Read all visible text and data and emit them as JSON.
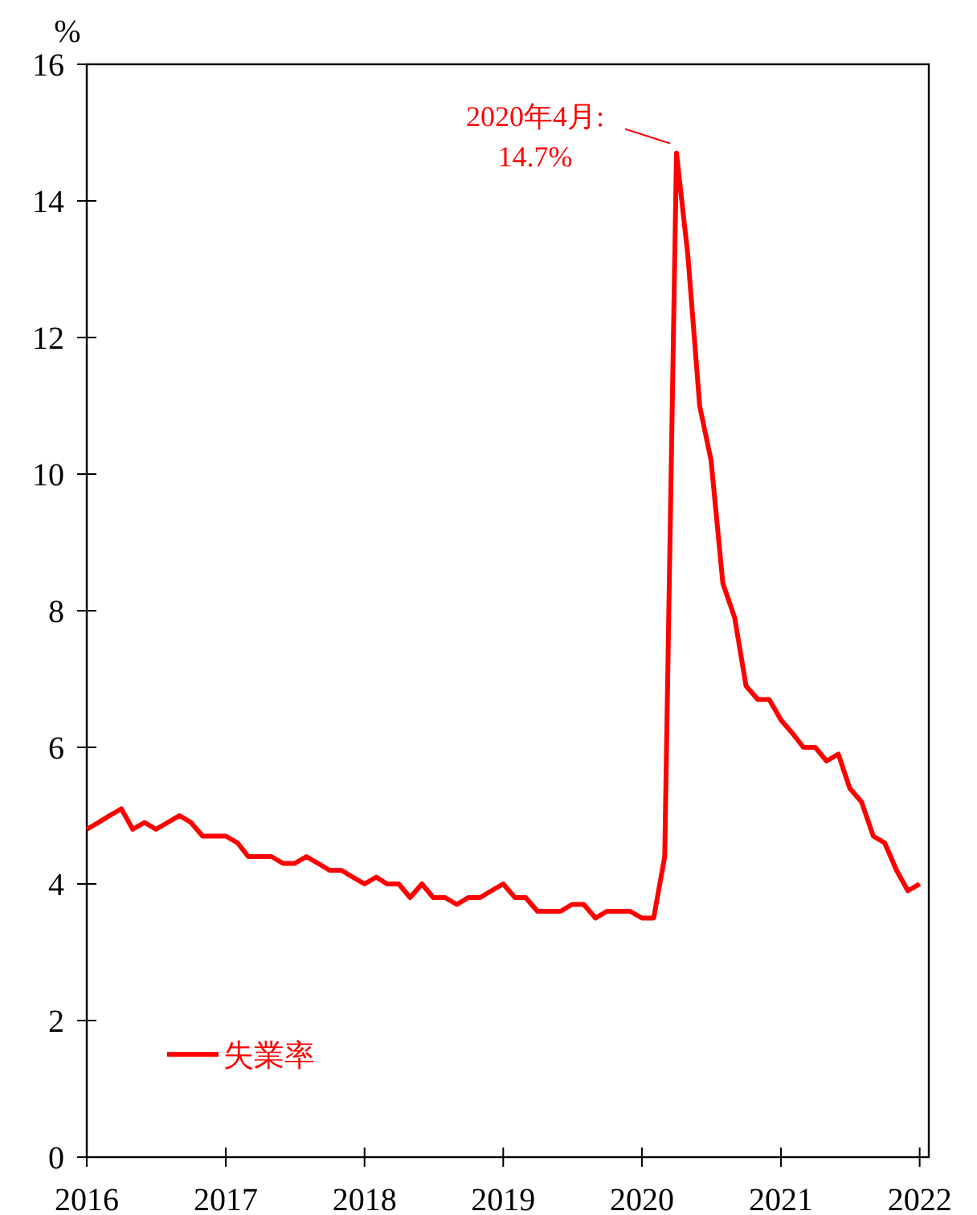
{
  "chart_data": {
    "type": "line",
    "ylabel": "%",
    "x": [
      "2016-01",
      "2016-02",
      "2016-03",
      "2016-04",
      "2016-05",
      "2016-06",
      "2016-07",
      "2016-08",
      "2016-09",
      "2016-10",
      "2016-11",
      "2016-12",
      "2017-01",
      "2017-02",
      "2017-03",
      "2017-04",
      "2017-05",
      "2017-06",
      "2017-07",
      "2017-08",
      "2017-09",
      "2017-10",
      "2017-11",
      "2017-12",
      "2018-01",
      "2018-02",
      "2018-03",
      "2018-04",
      "2018-05",
      "2018-06",
      "2018-07",
      "2018-08",
      "2018-09",
      "2018-10",
      "2018-11",
      "2018-12",
      "2019-01",
      "2019-02",
      "2019-03",
      "2019-04",
      "2019-05",
      "2019-06",
      "2019-07",
      "2019-08",
      "2019-09",
      "2019-10",
      "2019-11",
      "2019-12",
      "2020-01",
      "2020-02",
      "2020-03",
      "2020-04",
      "2020-05",
      "2020-06",
      "2020-07",
      "2020-08",
      "2020-09",
      "2020-10",
      "2020-11",
      "2020-12",
      "2021-01",
      "2021-02",
      "2021-03",
      "2021-04",
      "2021-05",
      "2021-06",
      "2021-07",
      "2021-08",
      "2021-09",
      "2021-10",
      "2021-11",
      "2021-12",
      "2022-01"
    ],
    "series": [
      {
        "name": "失業率",
        "color": "#ff0000",
        "values": [
          4.8,
          4.9,
          5.0,
          5.1,
          4.8,
          4.9,
          4.8,
          4.9,
          5.0,
          4.9,
          4.7,
          4.7,
          4.7,
          4.6,
          4.4,
          4.4,
          4.4,
          4.3,
          4.3,
          4.4,
          4.3,
          4.2,
          4.2,
          4.1,
          4.0,
          4.1,
          4.0,
          4.0,
          3.8,
          4.0,
          3.8,
          3.8,
          3.7,
          3.8,
          3.8,
          3.9,
          4.0,
          3.8,
          3.8,
          3.6,
          3.6,
          3.6,
          3.7,
          3.7,
          3.5,
          3.6,
          3.6,
          3.6,
          3.5,
          3.5,
          4.4,
          14.7,
          13.2,
          11.0,
          10.2,
          8.4,
          7.9,
          6.9,
          6.7,
          6.7,
          6.4,
          6.2,
          6.0,
          6.0,
          5.8,
          5.9,
          5.4,
          5.2,
          4.7,
          4.6,
          4.2,
          3.9,
          4.0
        ]
      }
    ],
    "xlim": [
      "2016-01",
      "2022-01-25"
    ],
    "xticks": [
      {
        "value": "2016-01",
        "label": "2016"
      },
      {
        "value": "2017-01",
        "label": "2017"
      },
      {
        "value": "2018-01",
        "label": "2018"
      },
      {
        "value": "2019-01",
        "label": "2019"
      },
      {
        "value": "2020-01",
        "label": "2020"
      },
      {
        "value": "2021-01",
        "label": "2021"
      },
      {
        "value": "2022-01",
        "label": "2022"
      }
    ],
    "ylim": [
      0,
      16
    ],
    "yticks": [
      0,
      2,
      4,
      6,
      8,
      10,
      12,
      14,
      16
    ],
    "legend": "bottom left",
    "line_style": "solid",
    "annotations": [
      {
        "text": "2020年4月:\n14.7%",
        "x": "2020-04",
        "y": 14.7
      }
    ]
  }
}
